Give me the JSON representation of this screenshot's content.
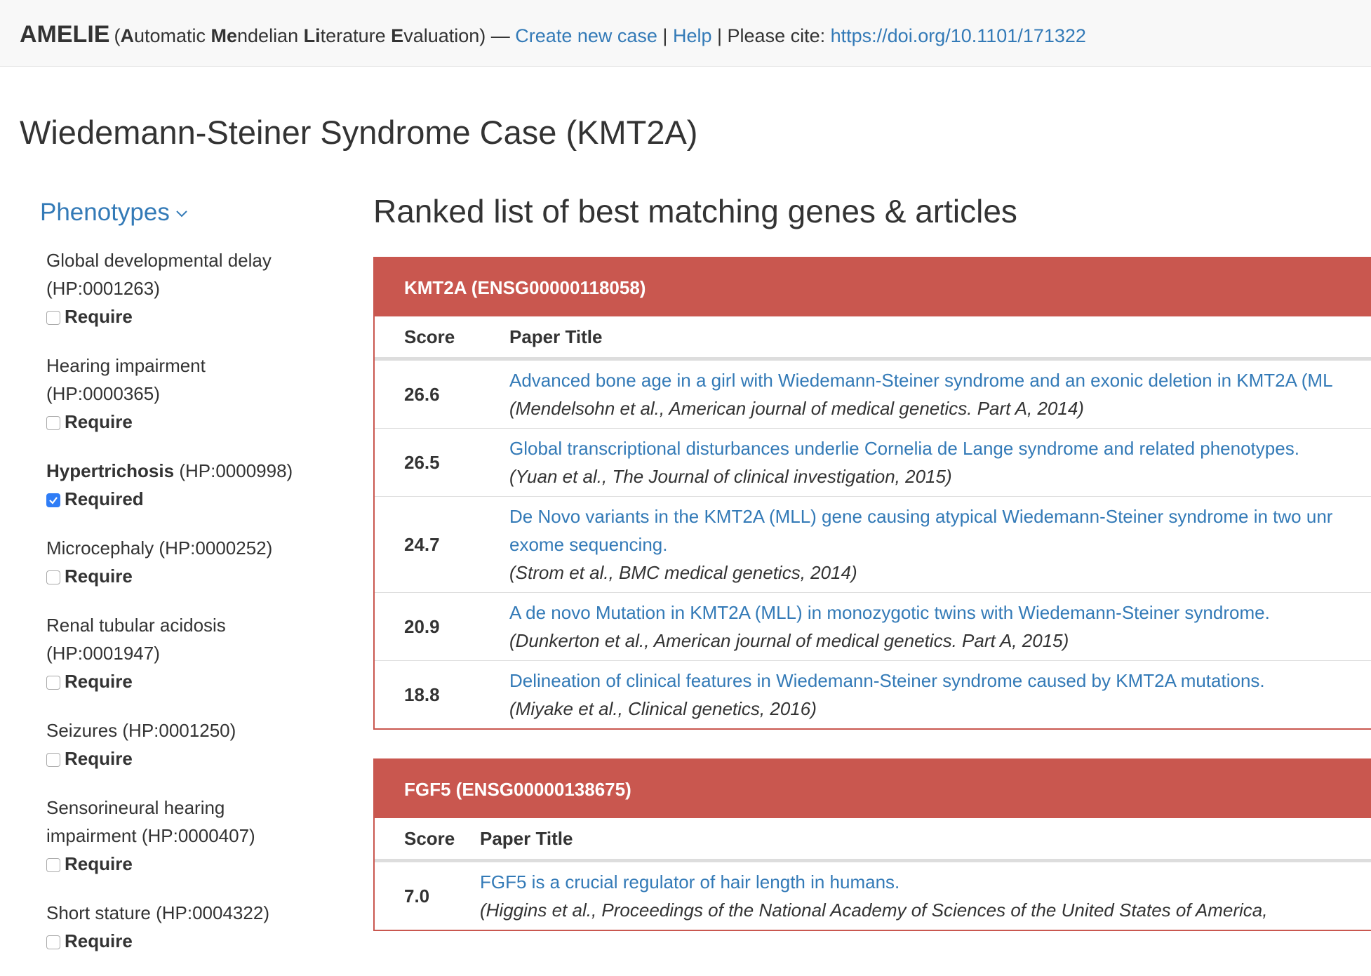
{
  "navbar": {
    "brand": "AMELIE",
    "full_name": [
      {
        "text": "(",
        "bold": false
      },
      {
        "text": "A",
        "bold": true
      },
      {
        "text": "utomatic ",
        "bold": false
      },
      {
        "text": "Me",
        "bold": true
      },
      {
        "text": "ndelian ",
        "bold": false
      },
      {
        "text": "Li",
        "bold": true
      },
      {
        "text": "terature ",
        "bold": false
      },
      {
        "text": "E",
        "bold": true
      },
      {
        "text": "valuation)",
        "bold": false
      }
    ],
    "dash": "—",
    "links": [
      "Create new case",
      "Help"
    ],
    "divider": "|",
    "cite_label": "Please cite:",
    "cite_url": "https://doi.org/10.1101/171322"
  },
  "page_title": "Wiedemann-Steiner Syndrome Case (KMT2A)",
  "phenotypes": {
    "heading": "Phenotypes",
    "items": [
      {
        "name": "Global developmental delay",
        "id": "(HP:0001263)",
        "checkbox_label": "Require",
        "checked": false
      },
      {
        "name": "Hearing impairment",
        "id": "(HP:0000365)",
        "checkbox_label": "Require",
        "checked": false
      },
      {
        "name": "Hypertrichosis",
        "id": "(HP:0000998)",
        "checkbox_label": "Required",
        "checked": true
      },
      {
        "name": "Microcephaly",
        "id": "(HP:0000252)",
        "checkbox_label": "Require",
        "checked": false
      },
      {
        "name": "Renal tubular acidosis",
        "id": "(HP:0001947)",
        "checkbox_label": "Require",
        "checked": false
      },
      {
        "name": "Seizures",
        "id": "(HP:0001250)",
        "checkbox_label": "Require",
        "checked": false
      },
      {
        "name": "Sensorineural hearing impairment",
        "id": "(HP:0000407)",
        "checkbox_label": "Require",
        "checked": false
      },
      {
        "name": "Short stature",
        "id": "(HP:0004322)",
        "checkbox_label": "Require",
        "checked": false
      }
    ]
  },
  "results": {
    "heading": "Ranked list of best matching genes & articles",
    "genes": [
      {
        "gene": "KMT2A (ENSG00000118058)",
        "columns": [
          "Score",
          "Paper Title"
        ],
        "papers": [
          {
            "score": "26.6",
            "title_lines": [
              "Advanced bone age in a girl with Wiedemann-Steiner syndrome and an exonic deletion in KMT2A (ML"
            ],
            "citation": "(Mendelsohn et al., American journal of medical genetics. Part A, 2014)"
          },
          {
            "score": "26.5",
            "title_lines": [
              "Global transcriptional disturbances underlie Cornelia de Lange syndrome and related phenotypes."
            ],
            "citation": "(Yuan et al., The Journal of clinical investigation, 2015)"
          },
          {
            "score": "24.7",
            "title_lines": [
              "De Novo variants in the KMT2A (MLL) gene causing atypical Wiedemann-Steiner syndrome in two unr",
              "exome sequencing."
            ],
            "citation": "(Strom et al., BMC medical genetics, 2014)"
          },
          {
            "score": "20.9",
            "title_lines": [
              "A de novo Mutation in KMT2A (MLL) in monozygotic twins with Wiedemann-Steiner syndrome."
            ],
            "citation": "(Dunkerton et al., American journal of medical genetics. Part A, 2015)"
          },
          {
            "score": "18.8",
            "title_lines": [
              "Delineation of clinical features in Wiedemann-Steiner syndrome caused by KMT2A mutations."
            ],
            "citation": "(Miyake et al., Clinical genetics, 2016)"
          }
        ]
      },
      {
        "gene": "FGF5 (ENSG00000138675)",
        "columns": [
          "Score",
          "Paper Title"
        ],
        "papers": [
          {
            "score": "7.0",
            "title_lines": [
              "FGF5 is a crucial regulator of hair length in humans."
            ],
            "citation": "(Higgins et al., Proceedings of the National Academy of Sciences of the United States of America,"
          }
        ]
      }
    ]
  }
}
